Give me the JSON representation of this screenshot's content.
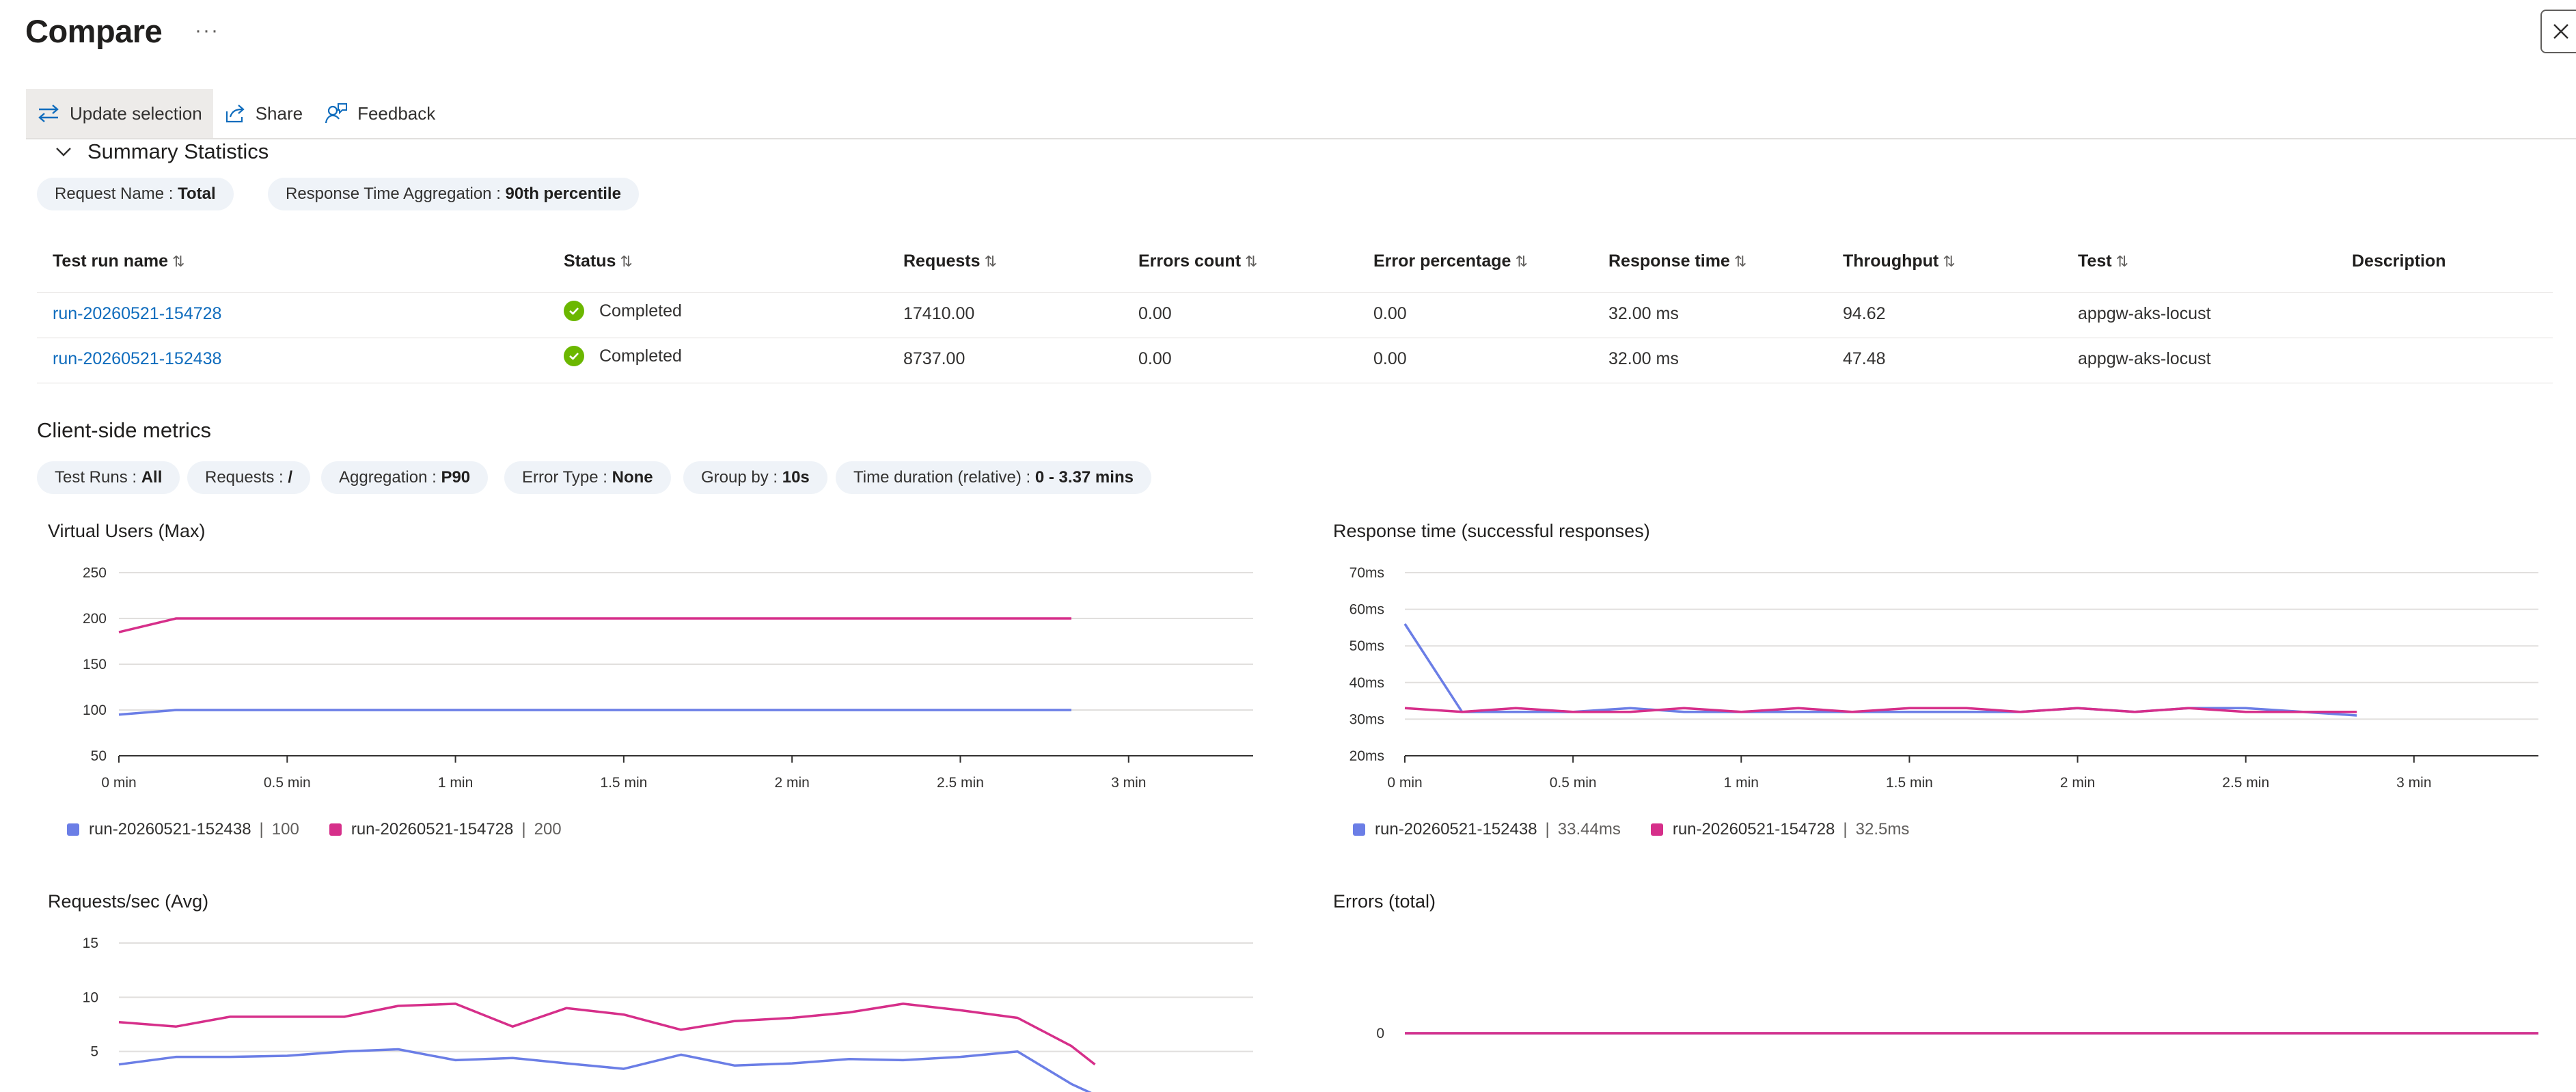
{
  "page": {
    "title": "Compare",
    "more_label": "···"
  },
  "toolbar": {
    "update_selection": "Update selection",
    "share": "Share",
    "feedback": "Feedback"
  },
  "summary": {
    "title": "Summary Statistics",
    "filters": [
      {
        "label": "Request Name : ",
        "value": "Total"
      },
      {
        "label": "Response Time Aggregation : ",
        "value": "90th percentile"
      }
    ],
    "columns": [
      "Test run name",
      "Status",
      "Requests",
      "Errors count",
      "Error percentage",
      "Response time",
      "Throughput",
      "Test",
      "Description"
    ],
    "sort_icon": "⇅",
    "rows": [
      {
        "name": "run-20260521-154728",
        "status": "Completed",
        "requests": "17410.00",
        "errors": "0.00",
        "error_pct": "0.00",
        "response_time": "32.00 ms",
        "throughput": "94.62",
        "test": "appgw-aks-locust",
        "description": ""
      },
      {
        "name": "run-20260521-152438",
        "status": "Completed",
        "requests": "8737.00",
        "errors": "0.00",
        "error_pct": "0.00",
        "response_time": "32.00 ms",
        "throughput": "47.48",
        "test": "appgw-aks-locust",
        "description": ""
      }
    ]
  },
  "metrics": {
    "title": "Client-side metrics",
    "filters": [
      {
        "label": "Test Runs : ",
        "value": "All"
      },
      {
        "label": "Requests : ",
        "value": "/"
      },
      {
        "label": "Aggregation : ",
        "value": "P90"
      },
      {
        "label": "Error Type : ",
        "value": "None"
      },
      {
        "label": "Group by : ",
        "value": "10s"
      },
      {
        "label": "Time duration (relative) : ",
        "value": "0 - 3.37 mins"
      }
    ]
  },
  "colors": {
    "series_a": "#6b7ee6",
    "series_b": "#d62f8a",
    "grid": "#e1dfdd",
    "accent": "#0f6cbd",
    "success": "#6bb700"
  },
  "chart_data": [
    {
      "type": "line",
      "title": "Virtual Users (Max)",
      "xlabel": "",
      "ylabel": "",
      "x_ticks": [
        "0 min",
        "0.5 min",
        "1 min",
        "1.5 min",
        "2 min",
        "2.5 min",
        "3 min"
      ],
      "x_range_min": [
        0,
        3.37
      ],
      "y_ticks": [
        "50",
        "100",
        "150",
        "200",
        "250"
      ],
      "ylim": [
        50,
        250
      ],
      "x": [
        0,
        0.17,
        0.33,
        0.5,
        0.67,
        0.83,
        1.0,
        1.17,
        1.33,
        1.5,
        1.67,
        1.83,
        2.0,
        2.17,
        2.33,
        2.5,
        2.67,
        2.83
      ],
      "series": [
        {
          "name": "run-20260521-152438",
          "legend_value": "100",
          "values": [
            95,
            100,
            100,
            100,
            100,
            100,
            100,
            100,
            100,
            100,
            100,
            100,
            100,
            100,
            100,
            100,
            100,
            100
          ]
        },
        {
          "name": "run-20260521-154728",
          "legend_value": "200",
          "values": [
            185,
            200,
            200,
            200,
            200,
            200,
            200,
            200,
            200,
            200,
            200,
            200,
            200,
            200,
            200,
            200,
            200,
            200
          ]
        }
      ],
      "grid": true,
      "legend": "bottom-left"
    },
    {
      "type": "line",
      "title": "Response time (successful responses)",
      "xlabel": "",
      "ylabel": "",
      "x_ticks": [
        "0 min",
        "0.5 min",
        "1 min",
        "1.5 min",
        "2 min",
        "2.5 min",
        "3 min"
      ],
      "x_range_min": [
        0,
        3.37
      ],
      "y_ticks": [
        "20ms",
        "30ms",
        "40ms",
        "50ms",
        "60ms",
        "70ms"
      ],
      "ylim": [
        20,
        70
      ],
      "x": [
        0,
        0.17,
        0.33,
        0.5,
        0.67,
        0.83,
        1.0,
        1.17,
        1.33,
        1.5,
        1.67,
        1.83,
        2.0,
        2.17,
        2.33,
        2.5,
        2.67,
        2.83
      ],
      "series": [
        {
          "name": "run-20260521-152438",
          "legend_value": "33.44ms",
          "values": [
            56,
            32,
            32,
            32,
            33,
            32,
            32,
            32,
            32,
            32,
            32,
            32,
            33,
            32,
            33,
            33,
            32,
            31
          ]
        },
        {
          "name": "run-20260521-154728",
          "legend_value": "32.5ms",
          "values": [
            33,
            32,
            33,
            32,
            32,
            33,
            32,
            33,
            32,
            33,
            33,
            32,
            33,
            32,
            33,
            32,
            32,
            32
          ]
        }
      ],
      "grid": true,
      "legend": "bottom-left"
    },
    {
      "type": "line",
      "title": "Requests/sec (Avg)",
      "xlabel": "",
      "ylabel": "",
      "y_ticks": [
        "5",
        "10",
        "15"
      ],
      "ylim": [
        0,
        15
      ],
      "x": [
        0,
        0.17,
        0.33,
        0.5,
        0.67,
        0.83,
        1.0,
        1.17,
        1.33,
        1.5,
        1.67,
        1.83,
        2.0,
        2.17,
        2.33,
        2.5,
        2.67,
        2.83,
        2.9
      ],
      "series": [
        {
          "name": "run-20260521-152438",
          "values": [
            3.8,
            4.5,
            4.5,
            4.6,
            5.0,
            5.2,
            4.2,
            4.4,
            3.9,
            3.4,
            4.7,
            3.7,
            3.9,
            4.3,
            4.2,
            4.5,
            5.0,
            2.0,
            1.0
          ]
        },
        {
          "name": "run-20260521-154728",
          "values": [
            7.7,
            7.3,
            8.2,
            8.2,
            8.2,
            9.2,
            9.4,
            7.3,
            9.0,
            8.4,
            7.0,
            7.8,
            8.1,
            8.6,
            9.4,
            8.8,
            8.1,
            5.5,
            3.8
          ]
        }
      ],
      "grid": true
    },
    {
      "type": "line",
      "title": "Errors (total)",
      "xlabel": "",
      "ylabel": "",
      "y_ticks": [
        "0"
      ],
      "x": [
        0,
        3.37
      ],
      "series": [
        {
          "name": "run-20260521-152438",
          "values": [
            0,
            0
          ]
        },
        {
          "name": "run-20260521-154728",
          "values": [
            0,
            0
          ]
        }
      ],
      "grid": false
    }
  ]
}
